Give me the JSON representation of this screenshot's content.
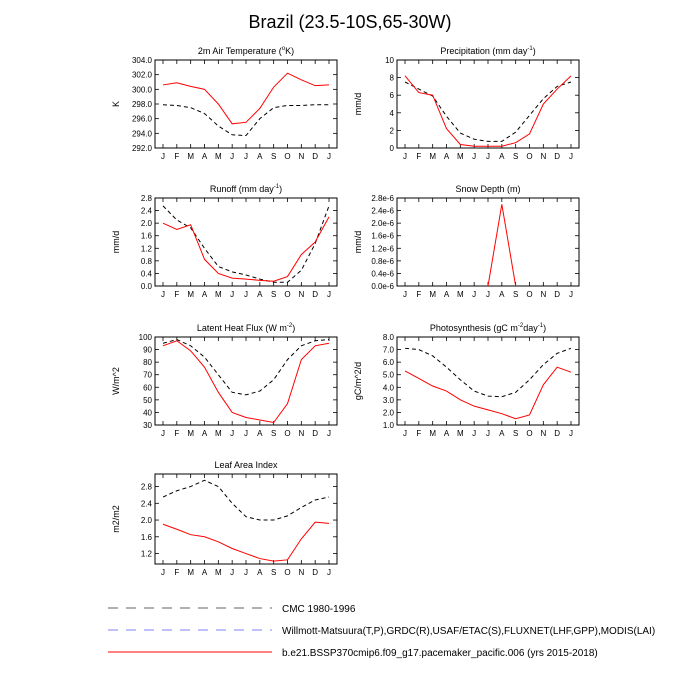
{
  "title": "Brazil (23.5-10S,65-30W)",
  "months": [
    "J",
    "F",
    "M",
    "A",
    "M",
    "J",
    "J",
    "A",
    "S",
    "O",
    "N",
    "D",
    "J"
  ],
  "colors": {
    "model": "#ff0000",
    "obs": "#000000",
    "obs2": "#8080ff",
    "axis": "#000000"
  },
  "chart_data": [
    {
      "id": "air-temp",
      "type": "line",
      "title": "2m Air Temperature (°K)",
      "title_main": "2m Air Temperature (",
      "title_sup": "o",
      "title_end": "K)",
      "ylabel": "K",
      "ylim": [
        292,
        304
      ],
      "yticks": [
        292,
        294,
        296,
        298,
        300,
        302,
        304
      ],
      "ytick_labels": [
        "292.0",
        "294.0",
        "296.0",
        "298.0",
        "300.0",
        "302.0",
        "304.0"
      ],
      "series": [
        {
          "name": "CMC 1980-1996",
          "style": "dashed",
          "color": "#000000",
          "values": [
            297.9,
            297.8,
            297.5,
            296.7,
            295.0,
            293.8,
            293.7,
            296.0,
            297.5,
            297.8,
            297.8,
            297.9,
            297.9
          ]
        },
        {
          "name": "model",
          "style": "solid",
          "color": "#ff0000",
          "values": [
            300.6,
            300.9,
            300.4,
            300.0,
            298.0,
            295.3,
            295.5,
            297.4,
            300.3,
            302.2,
            301.3,
            300.5,
            300.6
          ]
        }
      ]
    },
    {
      "id": "precip",
      "type": "line",
      "title": "Precipitation (mm day-1)",
      "title_main": "Precipitation (mm day",
      "title_sup": "-1",
      "title_end": ")",
      "ylabel": "mm/d",
      "ylim": [
        0,
        10
      ],
      "yticks": [
        0,
        2,
        4,
        6,
        8,
        10
      ],
      "ytick_labels": [
        "0",
        "2",
        "4",
        "6",
        "8",
        "10"
      ],
      "series": [
        {
          "name": "obs",
          "style": "dashed",
          "color": "#000000",
          "values": [
            7.5,
            6.7,
            5.9,
            3.6,
            1.7,
            1.0,
            0.75,
            0.75,
            1.8,
            3.7,
            5.6,
            7.0,
            7.5
          ]
        },
        {
          "name": "model",
          "style": "solid",
          "color": "#ff0000",
          "values": [
            8.2,
            6.3,
            6.0,
            2.2,
            0.4,
            0.2,
            0.2,
            0.2,
            0.6,
            1.6,
            5.0,
            6.7,
            8.2
          ]
        }
      ]
    },
    {
      "id": "runoff",
      "type": "line",
      "title": "Runoff (mm day-1)",
      "title_main": "Runoff (mm day",
      "title_sup": "-1",
      "title_end": ")",
      "ylabel": "mm/d",
      "ylim": [
        0,
        2.8
      ],
      "yticks": [
        0,
        0.4,
        0.8,
        1.2,
        1.6,
        2.0,
        2.4,
        2.8
      ],
      "ytick_labels": [
        "0.0",
        "0.4",
        "0.8",
        "1.2",
        "1.6",
        "2.0",
        "2.4",
        "2.8"
      ],
      "series": [
        {
          "name": "obs",
          "style": "dashed",
          "color": "#000000",
          "values": [
            2.55,
            2.1,
            1.85,
            1.2,
            0.62,
            0.45,
            0.35,
            0.22,
            0.12,
            0.12,
            0.5,
            1.35,
            2.55
          ]
        },
        {
          "name": "model",
          "style": "solid",
          "color": "#ff0000",
          "values": [
            2.0,
            1.8,
            1.95,
            0.85,
            0.4,
            0.25,
            0.22,
            0.18,
            0.15,
            0.3,
            1.0,
            1.4,
            2.2
          ]
        }
      ]
    },
    {
      "id": "snow",
      "type": "line",
      "title": "Snow Depth (m)",
      "title_main": "Snow Depth (m)",
      "title_sup": "",
      "title_end": "",
      "ylabel": "mm/d",
      "ylim": [
        0,
        2.8e-06
      ],
      "yticks": [
        0,
        4e-07,
        8e-07,
        1.2e-06,
        1.6e-06,
        2e-06,
        2.4e-06,
        2.8e-06
      ],
      "ytick_labels": [
        "0.0e-6",
        "0.4e-6",
        "0.8e-6",
        "1.2e-6",
        "1.6e-6",
        "2.0e-6",
        "2.4e-6",
        "2.8e-6"
      ],
      "series": [
        {
          "name": "model",
          "style": "solid",
          "color": "#ff0000",
          "values": [
            0,
            0,
            0,
            0,
            0,
            0,
            0,
            2.6e-06,
            0,
            0,
            0,
            0,
            0
          ],
          "visible_from": 6,
          "visible_to": 8
        }
      ]
    },
    {
      "id": "lhf",
      "type": "line",
      "title": "Latent Heat Flux (W m-2)",
      "title_main": "Latent Heat Flux (W m",
      "title_sup": "-2",
      "title_end": ")",
      "ylabel": "W/m^2",
      "ylim": [
        30,
        100
      ],
      "yticks": [
        30,
        40,
        50,
        60,
        70,
        80,
        90,
        100
      ],
      "ytick_labels": [
        "30",
        "40",
        "50",
        "60",
        "70",
        "80",
        "90",
        "100"
      ],
      "series": [
        {
          "name": "obs",
          "style": "dashed",
          "color": "#000000",
          "values": [
            95,
            98,
            93,
            84,
            70,
            56,
            54,
            57,
            66,
            82,
            93,
            97,
            98
          ]
        },
        {
          "name": "model",
          "style": "solid",
          "color": "#ff0000",
          "values": [
            93,
            97,
            89,
            76,
            56,
            40,
            36,
            34,
            32,
            47,
            82,
            93,
            95
          ]
        }
      ]
    },
    {
      "id": "gpp",
      "type": "line",
      "title": "Photosynthesis (gC m-2day-1)",
      "title_main": "Photosynthesis (gC m",
      "title_sup": "-2",
      "title_end": "day",
      "title_sup2": "-1",
      "title_end2": ")",
      "ylabel": "gC/m^2/d",
      "ylim": [
        1,
        8
      ],
      "yticks": [
        1,
        2,
        3,
        4,
        5,
        6,
        7,
        8
      ],
      "ytick_labels": [
        "1.0",
        "2.0",
        "3.0",
        "4.0",
        "5.0",
        "6.0",
        "7.0",
        "8.0"
      ],
      "series": [
        {
          "name": "obs",
          "style": "dashed",
          "color": "#000000",
          "values": [
            7.1,
            7.0,
            6.5,
            5.6,
            4.6,
            3.7,
            3.3,
            3.25,
            3.6,
            4.6,
            5.8,
            6.7,
            7.1
          ]
        },
        {
          "name": "model",
          "style": "solid",
          "color": "#ff0000",
          "values": [
            5.3,
            4.7,
            4.1,
            3.7,
            3.0,
            2.5,
            2.2,
            1.9,
            1.5,
            1.8,
            4.2,
            5.6,
            5.2
          ]
        }
      ]
    },
    {
      "id": "lai",
      "type": "line",
      "title": "Leaf Area Index",
      "title_main": "Leaf Area Index",
      "title_sup": "",
      "title_end": "",
      "ylabel": "m2/m2",
      "ylim": [
        0.95,
        3.1
      ],
      "yticks": [
        1.2,
        1.6,
        2.0,
        2.4,
        2.8
      ],
      "ytick_labels": [
        "1.2",
        "1.6",
        "2.0",
        "2.4",
        "2.8"
      ],
      "series": [
        {
          "name": "obs",
          "style": "dashed",
          "color": "#000000",
          "values": [
            2.55,
            2.7,
            2.8,
            2.95,
            2.8,
            2.4,
            2.08,
            2.0,
            2.0,
            2.1,
            2.3,
            2.48,
            2.55
          ]
        },
        {
          "name": "model",
          "style": "solid",
          "color": "#ff0000",
          "values": [
            1.9,
            1.78,
            1.65,
            1.6,
            1.48,
            1.32,
            1.2,
            1.08,
            1.02,
            1.05,
            1.55,
            1.95,
            1.92
          ]
        }
      ]
    }
  ],
  "legend": [
    {
      "label": "CMC 1980-1996",
      "color": "#606060",
      "style": "dashed"
    },
    {
      "label": "Willmott-Matsuura(T,P),GRDC(R),USAF/ETAC(S),FLUXNET(LHF,GPP),MODIS(LAI)",
      "color": "#8080ff",
      "style": "dashed"
    },
    {
      "label": "b.e21.BSSP370cmip6.f09_g17.pacemaker_pacific.006 (yrs 2015-2018)",
      "color": "#ff0000",
      "style": "solid"
    }
  ]
}
